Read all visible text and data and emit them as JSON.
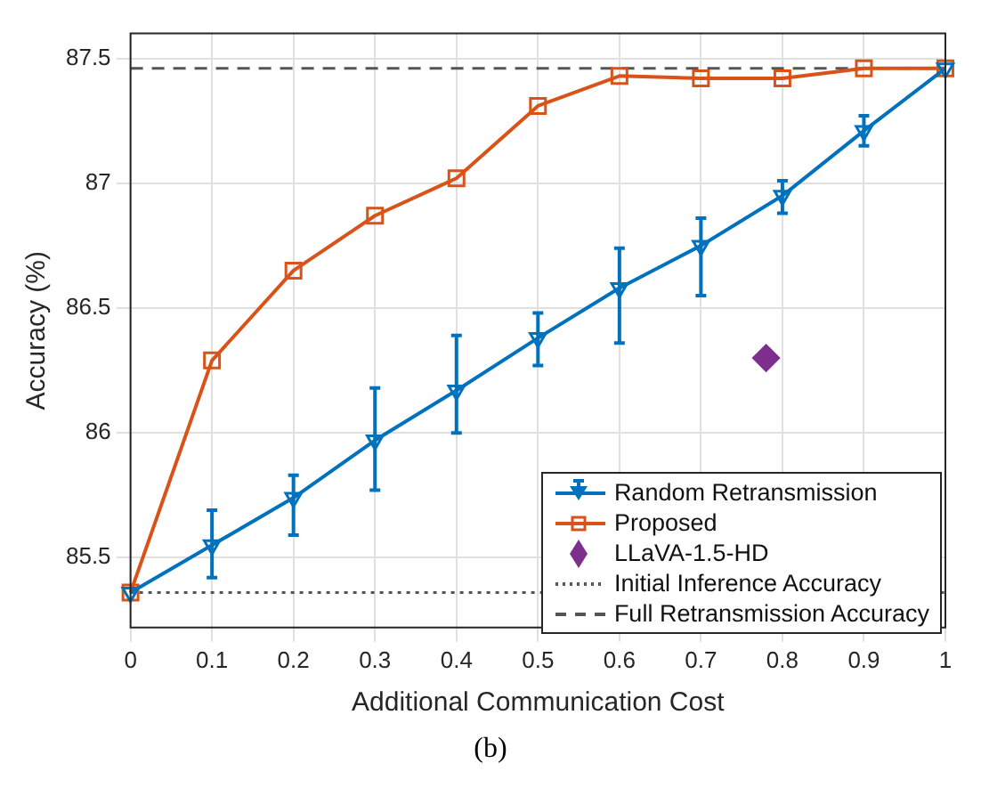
{
  "chart_data": {
    "type": "line",
    "xlabel": "Additional Communication Cost",
    "ylabel": "Accuracy (%)",
    "x": [
      0,
      0.1,
      0.2,
      0.3,
      0.4,
      0.5,
      0.6,
      0.7,
      0.8,
      0.9,
      1
    ],
    "series": [
      {
        "name": "Random Retransmission",
        "color": "#0072bd",
        "marker": "triangle",
        "values": [
          85.36,
          85.55,
          85.74,
          85.97,
          86.17,
          86.38,
          86.58,
          86.75,
          86.95,
          87.21,
          87.46
        ],
        "errors": [
          null,
          [
            85.42,
            85.69
          ],
          [
            85.59,
            85.83
          ],
          [
            85.77,
            86.18
          ],
          [
            86.0,
            86.39
          ],
          [
            86.27,
            86.48
          ],
          [
            86.36,
            86.74
          ],
          [
            86.55,
            86.86
          ],
          [
            86.88,
            87.01
          ],
          [
            87.15,
            87.27
          ],
          null
        ]
      },
      {
        "name": "Proposed",
        "color": "#d95319",
        "marker": "square",
        "values": [
          85.36,
          86.29,
          86.65,
          86.87,
          87.02,
          87.31,
          87.43,
          87.42,
          87.42,
          87.46,
          87.46
        ]
      },
      {
        "name": "LLaVA-1.5-HD",
        "type": "scatter",
        "color": "#7e2f8e",
        "marker": "diamond",
        "x": [
          0.78
        ],
        "values": [
          86.3
        ]
      }
    ],
    "ref_lines": [
      {
        "axis": "y",
        "value": 85.36,
        "label": "Initial Inference Accuracy",
        "color": "#555555",
        "line_style": "dotted"
      },
      {
        "axis": "y",
        "value": 87.46,
        "label": "Full Retransmission Accuracy",
        "color": "#555555",
        "line_style": "dashed"
      }
    ],
    "xlim": [
      0,
      1
    ],
    "xticks": [
      0,
      0.1,
      0.2,
      0.3,
      0.4,
      0.5,
      0.6,
      0.7,
      0.8,
      0.9,
      1
    ],
    "ylim": [
      85.22,
      87.6
    ],
    "yticks": [
      85.5,
      86,
      86.5,
      87,
      87.5
    ],
    "grid": true,
    "legend": "bottom right",
    "annotations": [
      "(b)"
    ]
  }
}
